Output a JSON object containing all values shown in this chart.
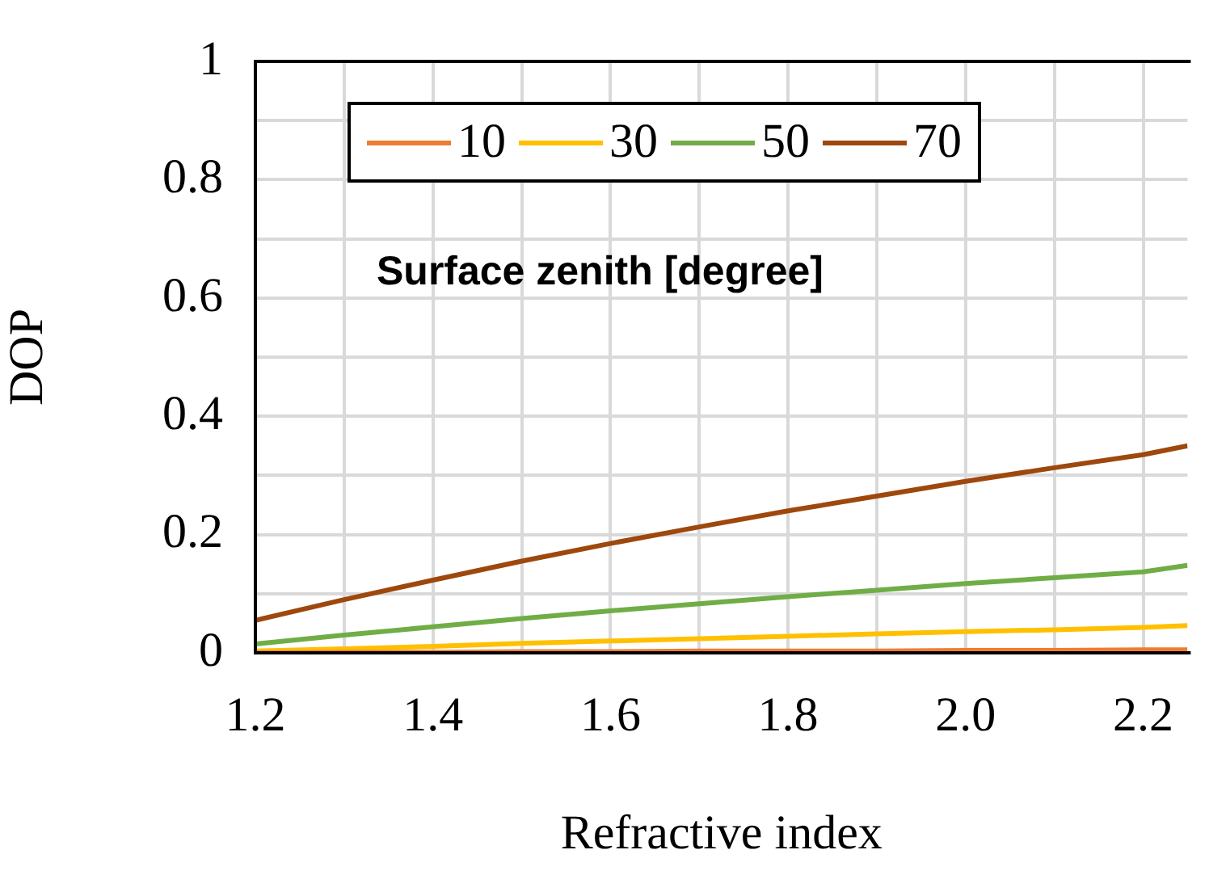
{
  "chart_data": {
    "type": "line",
    "xlabel": "Refractive index",
    "ylabel": "DOP",
    "legend_title": "Surface zenith [degree]",
    "x": [
      1.2,
      1.3,
      1.4,
      1.5,
      1.6,
      1.7,
      1.8,
      1.9,
      2.0,
      2.1,
      2.2,
      2.25
    ],
    "series": [
      {
        "name": "10",
        "color": "#ed7d31",
        "values": [
          0,
          0.001,
          0.001,
          0.002,
          0.002,
          0.003,
          0.003,
          0.003,
          0.004,
          0.004,
          0.005,
          0.005
        ]
      },
      {
        "name": "30",
        "color": "#ffc000",
        "values": [
          0.003,
          0.007,
          0.011,
          0.016,
          0.02,
          0.024,
          0.028,
          0.032,
          0.036,
          0.039,
          0.043,
          0.046
        ]
      },
      {
        "name": "50",
        "color": "#70ad47",
        "values": [
          0.015,
          0.03,
          0.044,
          0.058,
          0.071,
          0.083,
          0.095,
          0.106,
          0.117,
          0.127,
          0.137,
          0.148
        ]
      },
      {
        "name": "70",
        "color": "#9e480e",
        "values": [
          0.055,
          0.09,
          0.123,
          0.155,
          0.185,
          0.213,
          0.24,
          0.265,
          0.29,
          0.313,
          0.335,
          0.35
        ]
      }
    ],
    "xlim": [
      1.2,
      2.25
    ],
    "xticks": [
      1.2,
      {
        "value": 1.3,
        "label": null
      },
      1.4,
      {
        "value": 1.5,
        "label": null
      },
      1.6,
      {
        "value": 1.7,
        "label": null
      },
      1.8,
      {
        "value": 1.9,
        "label": null
      },
      {
        "value": 2.0,
        "label": "2.0"
      },
      {
        "value": 2.1,
        "label": null
      },
      2.2
    ],
    "ylim": [
      0,
      1
    ],
    "yticks": [
      0,
      {
        "value": 0.1,
        "label": null
      },
      0.2,
      {
        "value": 0.3,
        "label": null
      },
      0.4,
      {
        "value": 0.5,
        "label": null
      },
      0.6,
      {
        "value": 0.7,
        "label": null
      },
      0.8,
      {
        "value": 0.9,
        "label": null
      },
      1
    ],
    "grid": true,
    "legend": "top",
    "marker": "none",
    "line_style": "solid"
  }
}
